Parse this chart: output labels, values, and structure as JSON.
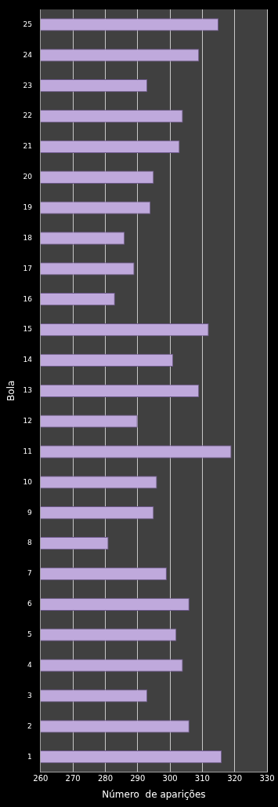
{
  "chart_data": {
    "type": "bar",
    "orientation": "horizontal",
    "xlabel": "Número  de aparições",
    "ylabel": "Bola",
    "categories": [
      "25",
      "24",
      "23",
      "22",
      "21",
      "20",
      "19",
      "18",
      "17",
      "16",
      "15",
      "14",
      "13",
      "12",
      "11",
      "10",
      "9",
      "8",
      "7",
      "6",
      "5",
      "4",
      "3",
      "2",
      "1"
    ],
    "values": [
      315,
      309,
      293,
      304,
      303,
      295,
      294,
      286,
      289,
      283,
      312,
      301,
      309,
      290,
      319,
      296,
      295,
      281,
      299,
      306,
      302,
      304,
      293,
      306,
      316
    ],
    "color": "#bfa9dc",
    "xlim": [
      260,
      330
    ],
    "xticks": [
      260,
      270,
      280,
      290,
      300,
      310,
      320,
      330
    ],
    "grid": "x",
    "legend": false
  }
}
